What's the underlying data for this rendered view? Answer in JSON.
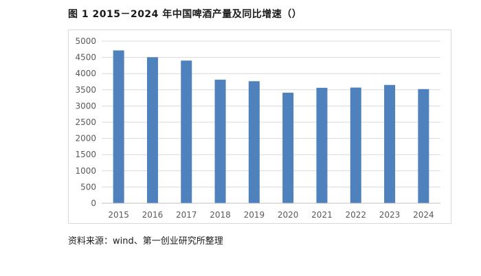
{
  "figure": {
    "title": "图 1 2015－2024 年中国啤酒产量及同比增速（）",
    "source": "资料来源：wind、第一创业研究所整理"
  },
  "chart_data": {
    "type": "bar",
    "categories": [
      "2015",
      "2016",
      "2017",
      "2018",
      "2019",
      "2020",
      "2021",
      "2022",
      "2023",
      "2024"
    ],
    "values": [
      4715,
      4506,
      4402,
      3812,
      3765,
      3411,
      3562,
      3569,
      3650,
      3522
    ],
    "ylim": [
      0,
      5000
    ],
    "yticks": [
      0,
      500,
      1000,
      1500,
      2000,
      2500,
      3000,
      3500,
      4000,
      4500,
      5000
    ],
    "grid": true,
    "legend": "none",
    "colors": {
      "bar": "#4f81bd",
      "grid": "#d9d9d9",
      "axis": "#bfbfbf",
      "tick_text": "#595959"
    }
  }
}
